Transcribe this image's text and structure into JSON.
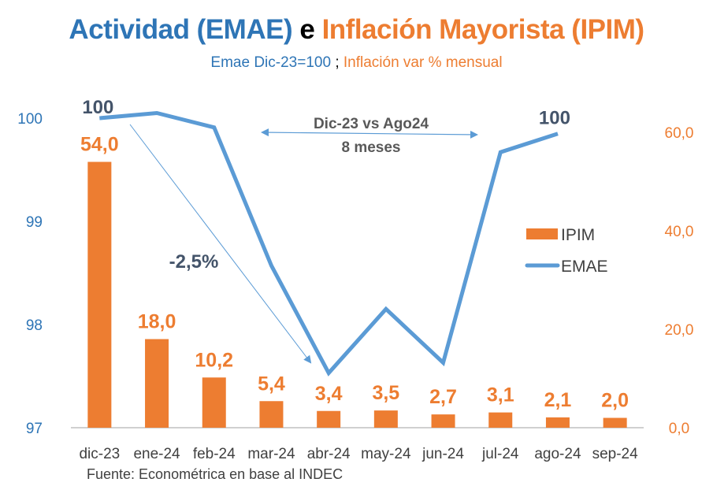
{
  "title": {
    "part1": "Actividad (EMAE)",
    "part2": "e",
    "part3": "Inflación Mayorista (IPIM)"
  },
  "subtitle": {
    "part1": "Emae Dic-23=100",
    "part2": ";",
    "part3": "Inflación var % mensual"
  },
  "colors": {
    "emae": "#5B9BD5",
    "ipim": "#ED7D31",
    "title_blue": "#2E75B6",
    "annotation_dark": "#44546A",
    "axis_line": "#D0D0D0"
  },
  "chart_data": {
    "type": "bar+line",
    "title": "Actividad (EMAE) e Inflación Mayorista (IPIM)",
    "subtitle": "Emae Dic-23=100 ; Inflación var % mensual",
    "categories": [
      "dic-23",
      "ene-24",
      "feb-24",
      "mar-24",
      "abr-24",
      "may-24",
      "jun-24",
      "jul-24",
      "ago-24",
      "sep-24"
    ],
    "series": [
      {
        "name": "IPIM",
        "type": "bar",
        "axis": "right",
        "values": [
          54.0,
          18.0,
          10.2,
          5.4,
          3.4,
          3.5,
          2.7,
          3.1,
          2.1,
          2.0
        ],
        "labels": [
          "54,0",
          "18,0",
          "10,2",
          "5,4",
          "3,4",
          "3,5",
          "2,7",
          "3,1",
          "2,1",
          "2,0"
        ]
      },
      {
        "name": "EMAE",
        "type": "line",
        "axis": "left",
        "values": [
          100.0,
          100.05,
          99.91,
          98.57,
          97.53,
          98.15,
          97.63,
          99.67,
          99.85,
          null
        ]
      }
    ],
    "left_axis": {
      "ylim": [
        97,
        100
      ],
      "ticks": [
        "97",
        "98",
        "99",
        "100"
      ],
      "tick_values": [
        97,
        98,
        99,
        100
      ]
    },
    "right_axis": {
      "ylim": [
        0,
        60
      ],
      "ticks": [
        "0,0",
        "20,0",
        "40,0",
        "60,0"
      ],
      "tick_values": [
        0,
        20,
        40,
        60
      ]
    },
    "legend": {
      "position": "right-middle",
      "entries": [
        "IPIM",
        "EMAE"
      ]
    },
    "grid": false,
    "annotations": {
      "emae_start_label": "100",
      "emae_end_label": "100",
      "period_line1": "Dic-23 vs Ago24",
      "period_line2": "8 meses",
      "drop_label": "-2,5%"
    },
    "source": "Fuente: Econométrica en base al INDEC"
  }
}
